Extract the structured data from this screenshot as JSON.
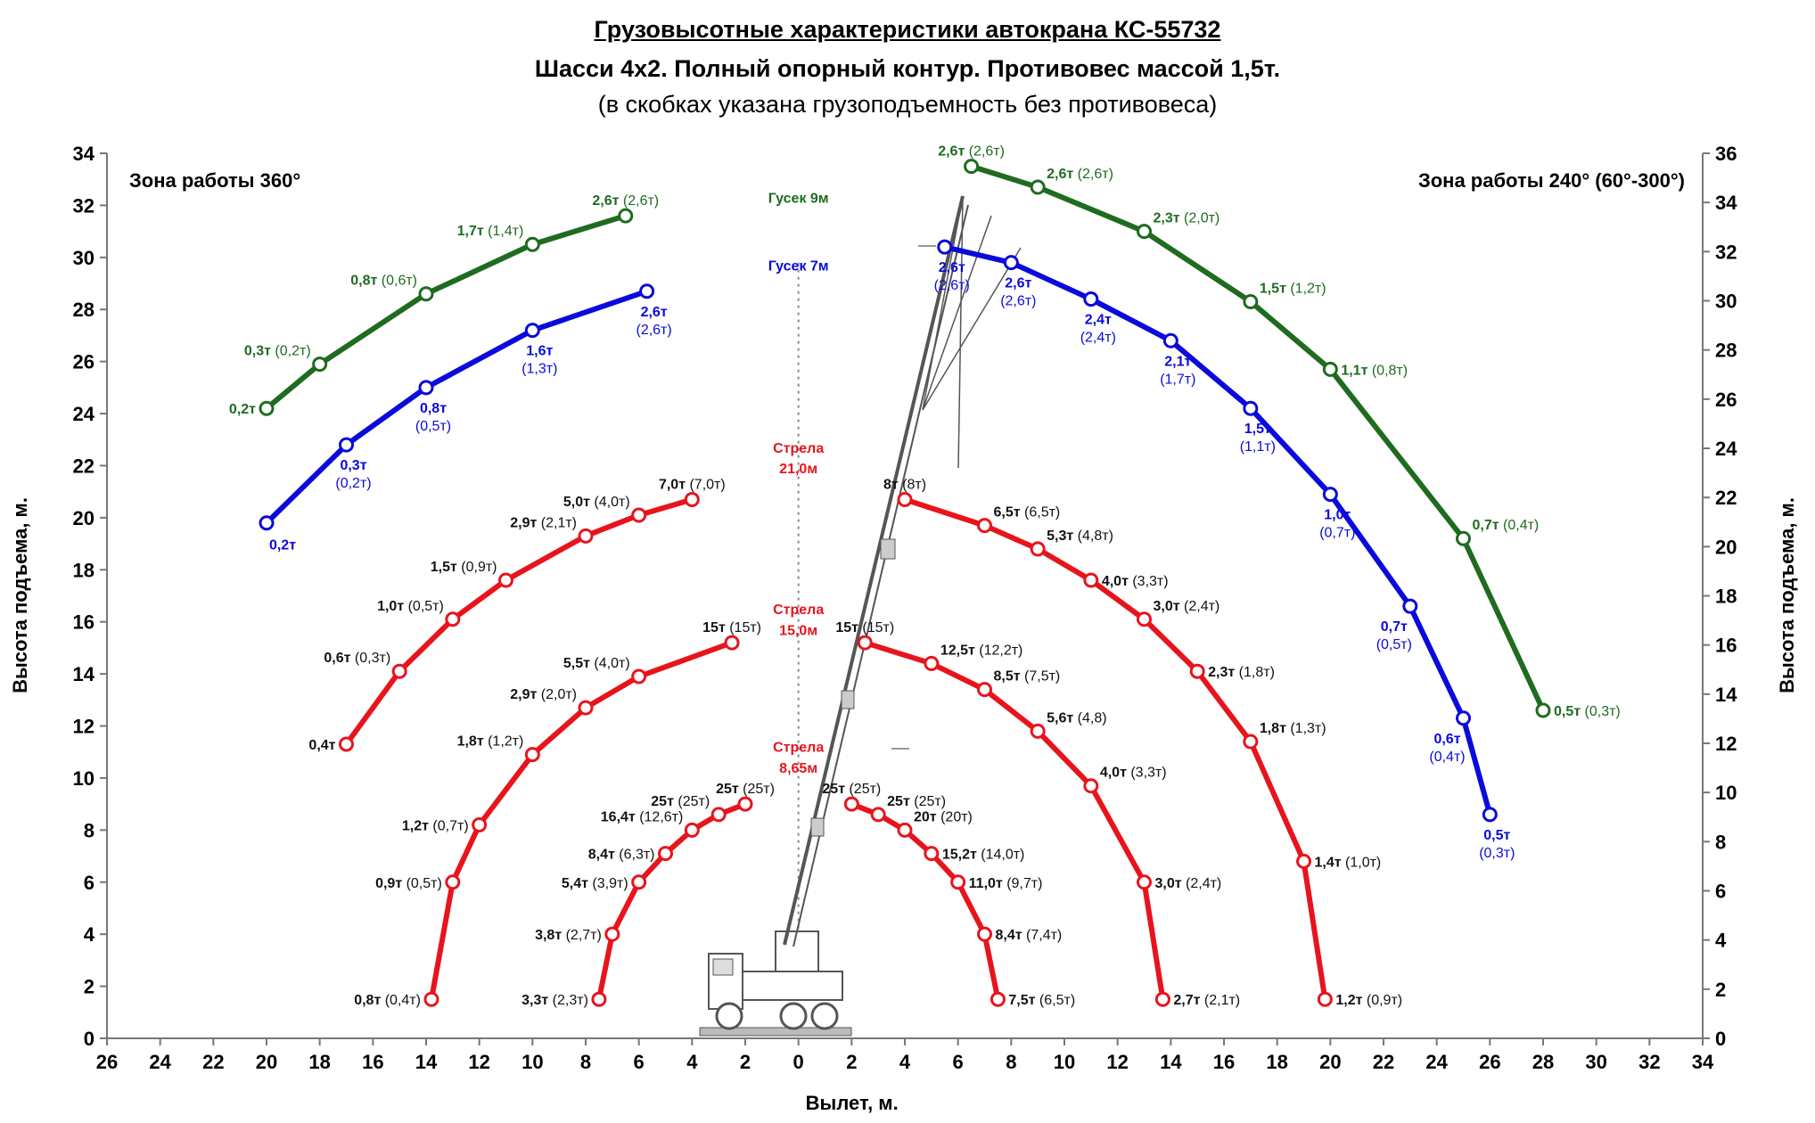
{
  "header": {
    "title": "Грузовысотные характеристики автокрана КС-55732",
    "subtitle": "Шасси 4х2. Полный опорный контур. Противовес массой 1,5т.",
    "note": "(в скобках указана грузоподъемность без противовеса)"
  },
  "colors": {
    "green": "#1f6b1f",
    "blue": "#0a0adc",
    "red": "#e8141c",
    "dark": "#111111"
  },
  "chart_data": {
    "type": "line",
    "xlabel": "Вылет, м.",
    "ylabel_left": "Высота подъема, м.",
    "ylabel_right": "Высота подъема, м.",
    "zone_left": "Зона работы 360°",
    "zone_right": "Зона работы 240° (60°-300°)",
    "x_ticks": [
      "26",
      "24",
      "22",
      "20",
      "18",
      "16",
      "14",
      "12",
      "10",
      "8",
      "6",
      "4",
      "2",
      "0",
      "2",
      "4",
      "6",
      "8",
      "10",
      "12",
      "14",
      "16",
      "18",
      "20",
      "22",
      "24",
      "26",
      "28",
      "30",
      "32",
      "34"
    ],
    "xlim": [
      -26,
      34
    ],
    "ylim_left": [
      0,
      34
    ],
    "ylim_right": [
      0,
      36
    ],
    "y_ticks_left": [
      "0",
      "2",
      "4",
      "6",
      "8",
      "10",
      "12",
      "14",
      "16",
      "18",
      "20",
      "22",
      "24",
      "26",
      "28",
      "30",
      "32",
      "34"
    ],
    "y_ticks_right": [
      "0",
      "2",
      "4",
      "6",
      "8",
      "10",
      "12",
      "14",
      "16",
      "18",
      "20",
      "22",
      "24",
      "26",
      "28",
      "30",
      "32",
      "34",
      "36"
    ],
    "grid": false,
    "center_labels": [
      {
        "text": "Гусек 9м",
        "x": 0,
        "y": 32.1,
        "color": "green"
      },
      {
        "text": "Гусек 7м",
        "x": 0,
        "y": 29.5,
        "color": "blue"
      },
      {
        "text": "Стрела",
        "x": 0,
        "y": 22.5,
        "color": "red"
      },
      {
        "text": "21,0м",
        "x": 0,
        "y": 21.7,
        "color": "red"
      },
      {
        "text": "Стрела",
        "x": 0,
        "y": 16.3,
        "color": "red"
      },
      {
        "text": "15,0м",
        "x": 0,
        "y": 15.5,
        "color": "red"
      },
      {
        "text": "Стрела",
        "x": 0,
        "y": 11.0,
        "color": "red"
      },
      {
        "text": "8,65м",
        "x": 0,
        "y": 10.2,
        "color": "red"
      }
    ],
    "series": [
      {
        "name": "Гусек 9м — зона 360°",
        "color": "green",
        "points": [
          {
            "x": -20,
            "y": 24.2,
            "label": "0,2т",
            "sub": "",
            "pos": "left"
          },
          {
            "x": -18,
            "y": 25.9,
            "label": "0,3т",
            "sub": "(0,2т)",
            "pos": "uleft"
          },
          {
            "x": -14,
            "y": 28.6,
            "label": "0,8т",
            "sub": "(0,6т)",
            "pos": "uleft"
          },
          {
            "x": -10,
            "y": 30.5,
            "label": "1,7т",
            "sub": "(1,4т)",
            "pos": "uleft"
          },
          {
            "x": -6.5,
            "y": 31.6,
            "label": "2,6т",
            "sub": "(2,6т)",
            "pos": "up"
          }
        ]
      },
      {
        "name": "Гусек 7м — зона 360°",
        "color": "blue",
        "points": [
          {
            "x": -20,
            "y": 19.8,
            "label": "0,2т",
            "sub": "",
            "pos": "below"
          },
          {
            "x": -17,
            "y": 22.8,
            "label": "0,3т",
            "sub": "(0,2т)",
            "pos": "below2"
          },
          {
            "x": -14,
            "y": 25.0,
            "label": "0,8т",
            "sub": "(0,5т)",
            "pos": "below2"
          },
          {
            "x": -10,
            "y": 27.2,
            "label": "1,6т",
            "sub": "(1,3т)",
            "pos": "below2"
          },
          {
            "x": -5.7,
            "y": 28.7,
            "label": "2,6т",
            "sub": "(2,6т)",
            "pos": "below2"
          }
        ]
      },
      {
        "name": "Стрела 21,0м — зона 360°",
        "color": "red",
        "points": [
          {
            "x": -17,
            "y": 11.3,
            "label": "0,4т",
            "sub": "",
            "pos": "left"
          },
          {
            "x": -15,
            "y": 14.1,
            "label": "0,6т",
            "sub": "(0,3т)",
            "pos": "uleft"
          },
          {
            "x": -13,
            "y": 16.1,
            "label": "1,0т",
            "sub": "(0,5т)",
            "pos": "uleft"
          },
          {
            "x": -11,
            "y": 17.6,
            "label": "1,5т",
            "sub": "(0,9т)",
            "pos": "uleft"
          },
          {
            "x": -8,
            "y": 19.3,
            "label": "2,9т",
            "sub": "(2,1т)",
            "pos": "uleft"
          },
          {
            "x": -6,
            "y": 20.1,
            "label": "5,0т",
            "sub": "(4,0т)",
            "pos": "uleft"
          },
          {
            "x": -4,
            "y": 20.7,
            "label": "7,0т",
            "sub": "(7,0т)",
            "pos": "up"
          }
        ]
      },
      {
        "name": "Стрела 15,0м — зона 360°",
        "color": "red",
        "points": [
          {
            "x": -13.8,
            "y": 1.5,
            "label": "0,8т",
            "sub": "(0,4т)",
            "pos": "left"
          },
          {
            "x": -13,
            "y": 6.0,
            "label": "0,9т",
            "sub": "(0,5т)",
            "pos": "left"
          },
          {
            "x": -12,
            "y": 8.2,
            "label": "1,2т",
            "sub": "(0,7т)",
            "pos": "left"
          },
          {
            "x": -10,
            "y": 10.9,
            "label": "1,8т",
            "sub": "(1,2т)",
            "pos": "uleft"
          },
          {
            "x": -8,
            "y": 12.7,
            "label": "2,9т",
            "sub": "(2,0т)",
            "pos": "uleft"
          },
          {
            "x": -6,
            "y": 13.9,
            "label": "5,5т",
            "sub": "(4,0т)",
            "pos": "uleft"
          },
          {
            "x": -2.5,
            "y": 15.2,
            "label": "15т",
            "sub": "(15т)",
            "pos": "up"
          }
        ]
      },
      {
        "name": "Стрела 8,65м — зона 360°",
        "color": "red",
        "points": [
          {
            "x": -7.5,
            "y": 1.5,
            "label": "3,3т",
            "sub": "(2,3т)",
            "pos": "left"
          },
          {
            "x": -7,
            "y": 4.0,
            "label": "3,8т",
            "sub": "(2,7т)",
            "pos": "left"
          },
          {
            "x": -6,
            "y": 6.0,
            "label": "5,4т",
            "sub": "(3,9т)",
            "pos": "left"
          },
          {
            "x": -5,
            "y": 7.1,
            "label": "8,4т",
            "sub": "(6,3т)",
            "pos": "left"
          },
          {
            "x": -4,
            "y": 8.0,
            "label": "16,4т",
            "sub": "(12,6т)",
            "pos": "uleft"
          },
          {
            "x": -3,
            "y": 8.6,
            "label": "25т",
            "sub": "(25т)",
            "pos": "uleft"
          },
          {
            "x": -2,
            "y": 9.0,
            "label": "25т",
            "sub": "(25т)",
            "pos": "up"
          }
        ]
      },
      {
        "name": "Гусек 9м — зона 240°",
        "color": "green",
        "points": [
          {
            "x": 6.5,
            "y": 33.5,
            "label": "2,6т",
            "sub": "(2,6т)",
            "pos": "up"
          },
          {
            "x": 9,
            "y": 32.7,
            "label": "2,6т",
            "sub": "(2,6т)",
            "pos": "uright"
          },
          {
            "x": 13,
            "y": 31.0,
            "label": "2,3т",
            "sub": "(2,0т)",
            "pos": "uright"
          },
          {
            "x": 17,
            "y": 28.3,
            "label": "1,5т",
            "sub": "(1,2т)",
            "pos": "uright"
          },
          {
            "x": 20,
            "y": 25.7,
            "label": "1,1т",
            "sub": "(0,8т)",
            "pos": "right"
          },
          {
            "x": 25,
            "y": 19.2,
            "label": "0,7т",
            "sub": "(0,4т)",
            "pos": "uright"
          },
          {
            "x": 28,
            "y": 12.6,
            "label": "0,5т",
            "sub": "(0,3т)",
            "pos": "right"
          }
        ]
      },
      {
        "name": "Гусек 7м — зона 240°",
        "color": "blue",
        "points": [
          {
            "x": 5.5,
            "y": 30.4,
            "label": "2,6т",
            "sub": "(2,6т)",
            "pos": "below2"
          },
          {
            "x": 8,
            "y": 29.8,
            "label": "2,6т",
            "sub": "(2,6т)",
            "pos": "below2"
          },
          {
            "x": 11,
            "y": 28.4,
            "label": "2,4т",
            "sub": "(2,4т)",
            "pos": "below2"
          },
          {
            "x": 14,
            "y": 26.8,
            "label": "2,1т",
            "sub": "(1,7т)",
            "pos": "below2"
          },
          {
            "x": 17,
            "y": 24.2,
            "label": "1,5т",
            "sub": "(1,1т)",
            "pos": "below2"
          },
          {
            "x": 20,
            "y": 20.9,
            "label": "1,0т",
            "sub": "(0,7т)",
            "pos": "below2"
          },
          {
            "x": 23,
            "y": 16.6,
            "label": "0,7т",
            "sub": "(0,5т)",
            "pos": "below2l"
          },
          {
            "x": 25,
            "y": 12.3,
            "label": "0,6т",
            "sub": "(0,4т)",
            "pos": "below2l"
          },
          {
            "x": 26,
            "y": 8.6,
            "label": "0,5т",
            "sub": "(0,3т)",
            "pos": "below2"
          }
        ]
      },
      {
        "name": "Стрела 21,0м — зона 240°",
        "color": "red",
        "points": [
          {
            "x": 4,
            "y": 20.7,
            "label": "8т",
            "sub": "(8т)",
            "pos": "up"
          },
          {
            "x": 7,
            "y": 19.7,
            "label": "6,5т",
            "sub": "(6,5т)",
            "pos": "uright"
          },
          {
            "x": 9,
            "y": 18.8,
            "label": "5,3т",
            "sub": "(4,8т)",
            "pos": "uright"
          },
          {
            "x": 11,
            "y": 17.6,
            "label": "4,0т",
            "sub": "(3,3т)",
            "pos": "right"
          },
          {
            "x": 13,
            "y": 16.1,
            "label": "3,0т",
            "sub": "(2,4т)",
            "pos": "uright"
          },
          {
            "x": 15,
            "y": 14.1,
            "label": "2,3т",
            "sub": "(1,8т)",
            "pos": "right"
          },
          {
            "x": 17,
            "y": 11.4,
            "label": "1,8т",
            "sub": "(1,3т)",
            "pos": "uright"
          },
          {
            "x": 19,
            "y": 6.8,
            "label": "1,4т",
            "sub": "(1,0т)",
            "pos": "right"
          },
          {
            "x": 19.8,
            "y": 1.5,
            "label": "1,2т",
            "sub": "(0,9т)",
            "pos": "right"
          }
        ]
      },
      {
        "name": "Стрела 15,0м — зона 240°",
        "color": "red",
        "points": [
          {
            "x": 2.5,
            "y": 15.2,
            "label": "15т",
            "sub": "(15т)",
            "pos": "up"
          },
          {
            "x": 5,
            "y": 14.4,
            "label": "12,5т",
            "sub": "(12,2т)",
            "pos": "uright"
          },
          {
            "x": 7,
            "y": 13.4,
            "label": "8,5т",
            "sub": "(7,5т)",
            "pos": "uright"
          },
          {
            "x": 9,
            "y": 11.8,
            "label": "5,6т",
            "sub": "(4,8)",
            "pos": "uright"
          },
          {
            "x": 11,
            "y": 9.7,
            "label": "4,0т",
            "sub": "(3,3т)",
            "pos": "uright"
          },
          {
            "x": 13,
            "y": 6.0,
            "label": "3,0т",
            "sub": "(2,4т)",
            "pos": "right"
          },
          {
            "x": 13.7,
            "y": 1.5,
            "label": "2,7т",
            "sub": "(2,1т)",
            "pos": "right"
          }
        ]
      },
      {
        "name": "Стрела 8,65м — зона 240°",
        "color": "red",
        "points": [
          {
            "x": 2,
            "y": 9.0,
            "label": "25т",
            "sub": "(25т)",
            "pos": "up"
          },
          {
            "x": 3,
            "y": 8.6,
            "label": "25т",
            "sub": "(25т)",
            "pos": "uright"
          },
          {
            "x": 4,
            "y": 8.0,
            "label": "20т",
            "sub": "(20т)",
            "pos": "uright"
          },
          {
            "x": 5,
            "y": 7.1,
            "label": "15,2т",
            "sub": "(14,0т)",
            "pos": "right"
          },
          {
            "x": 6,
            "y": 6.0,
            "label": "11,0т",
            "sub": "(9,7т)",
            "pos": "right"
          },
          {
            "x": 7,
            "y": 4.0,
            "label": "8,4т",
            "sub": "(7,4т)",
            "pos": "right"
          },
          {
            "x": 7.5,
            "y": 1.5,
            "label": "7,5т",
            "sub": "(6,5т)",
            "pos": "right"
          }
        ]
      }
    ]
  }
}
